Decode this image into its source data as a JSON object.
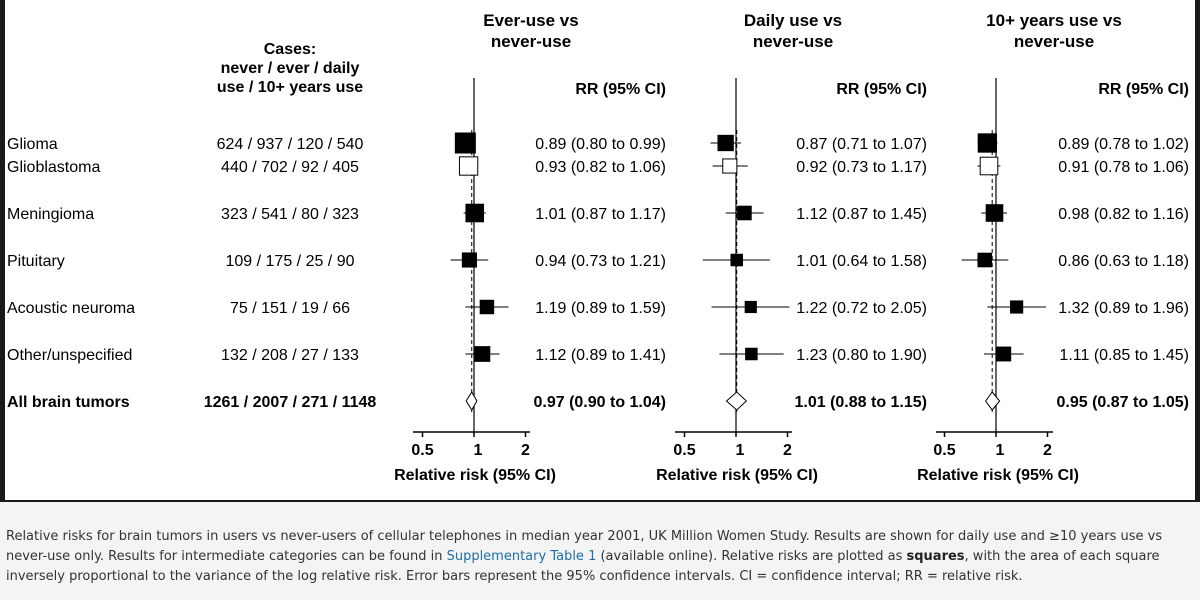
{
  "chart_data": {
    "type": "forest",
    "cases_header": [
      "Cases:",
      "never / ever / daily",
      "use / 10+ years use"
    ],
    "rr_header": "RR (95% CI)",
    "axis_title": "Relative risk (95% CI)",
    "axis_ticks": [
      0.5,
      1,
      2
    ],
    "axis_tick_labels": [
      "0.5",
      "1",
      "2"
    ],
    "rows": [
      {
        "label": "Glioma",
        "cases": "624 / 937 / 120 / 540",
        "filled": true
      },
      {
        "label": "Glioblastoma",
        "cases": "440 / 702 / 92 / 405",
        "filled": false
      },
      {
        "label": "Meningioma",
        "cases": "323 / 541 / 80 / 323",
        "filled": true
      },
      {
        "label": "Pituitary",
        "cases": "109 / 175 / 25 / 90",
        "filled": true
      },
      {
        "label": "Acoustic neuroma",
        "cases": "75 / 151 / 19 / 66",
        "filled": true
      },
      {
        "label": "Other/unspecified",
        "cases": "132 / 208 / 27 / 133",
        "filled": true
      },
      {
        "label": "All brain tumors",
        "cases": "1261 / 2007 / 271 / 1148",
        "summary": true
      }
    ],
    "panels": [
      {
        "title": [
          "Ever-use vs",
          "never-use"
        ],
        "estimates": [
          {
            "rr": 0.89,
            "lo": 0.8,
            "hi": 0.99,
            "weight": 1.0,
            "text": "0.89 (0.80 to 0.99)"
          },
          {
            "rr": 0.93,
            "lo": 0.82,
            "hi": 1.06,
            "weight": 0.8,
            "text": "0.93 (0.82 to 1.06)"
          },
          {
            "rr": 1.01,
            "lo": 0.87,
            "hi": 1.17,
            "weight": 0.72,
            "text": "1.01 (0.87 to 1.17)"
          },
          {
            "rr": 0.94,
            "lo": 0.73,
            "hi": 1.21,
            "weight": 0.4,
            "text": "0.94 (0.73 to 1.21)"
          },
          {
            "rr": 1.19,
            "lo": 0.89,
            "hi": 1.59,
            "weight": 0.35,
            "text": "1.19 (0.89 to 1.59)"
          },
          {
            "rr": 1.12,
            "lo": 0.89,
            "hi": 1.41,
            "weight": 0.45,
            "text": "1.12 (0.89 to 1.41)"
          },
          {
            "rr": 0.97,
            "lo": 0.9,
            "hi": 1.04,
            "weight": 1.0,
            "text": "0.97 (0.90 to 1.04)"
          }
        ]
      },
      {
        "title": [
          "Daily use vs",
          "never-use"
        ],
        "estimates": [
          {
            "rr": 0.87,
            "lo": 0.71,
            "hi": 1.07,
            "weight": 0.5,
            "text": "0.87 (0.71 to 1.07)"
          },
          {
            "rr": 0.92,
            "lo": 0.73,
            "hi": 1.17,
            "weight": 0.4,
            "text": "0.92 (0.73 to 1.17)"
          },
          {
            "rr": 1.12,
            "lo": 0.87,
            "hi": 1.45,
            "weight": 0.36,
            "text": "1.12 (0.87 to 1.45)"
          },
          {
            "rr": 1.01,
            "lo": 0.64,
            "hi": 1.58,
            "weight": 0.22,
            "text": "1.01 (0.64 to 1.58)"
          },
          {
            "rr": 1.22,
            "lo": 0.72,
            "hi": 2.05,
            "weight": 0.2,
            "text": "1.22 (0.72 to 2.05)"
          },
          {
            "rr": 1.23,
            "lo": 0.8,
            "hi": 1.9,
            "weight": 0.22,
            "text": "1.23 (0.80 to 1.90)"
          },
          {
            "rr": 1.01,
            "lo": 0.88,
            "hi": 1.15,
            "weight": 1.0,
            "text": "1.01 (0.88 to 1.15)"
          }
        ]
      },
      {
        "title": [
          "10+ years use vs",
          "never-use"
        ],
        "estimates": [
          {
            "rr": 0.89,
            "lo": 0.78,
            "hi": 1.02,
            "weight": 0.8,
            "text": "0.89 (0.78 to 1.02)"
          },
          {
            "rr": 0.91,
            "lo": 0.78,
            "hi": 1.06,
            "weight": 0.72,
            "text": "0.91 (0.78 to 1.06)"
          },
          {
            "rr": 0.98,
            "lo": 0.82,
            "hi": 1.16,
            "weight": 0.62,
            "text": "0.98 (0.82 to 1.16)"
          },
          {
            "rr": 0.86,
            "lo": 0.63,
            "hi": 1.18,
            "weight": 0.36,
            "text": "0.86 (0.63 to 1.18)"
          },
          {
            "rr": 1.32,
            "lo": 0.89,
            "hi": 1.96,
            "weight": 0.26,
            "text": "1.32 (0.89 to 1.96)"
          },
          {
            "rr": 1.11,
            "lo": 0.85,
            "hi": 1.45,
            "weight": 0.38,
            "text": "1.11 (0.85 to 1.45)"
          },
          {
            "rr": 0.95,
            "lo": 0.87,
            "hi": 1.05,
            "weight": 1.0,
            "text": "0.95 (0.87 to 1.05)"
          }
        ]
      }
    ]
  },
  "caption": {
    "part1": "Relative risks for brain tumors in users vs never-users of cellular telephones in median year 2001, UK Million Women Study. Results are shown for daily use and ≥10 years use vs never-use only. Results for intermediate categories can be found in ",
    "link": "Supplementary Table 1",
    "part2": " (available online). Relative risks are plotted as ",
    "bold": "squares",
    "part3": ", with the area of each square inversely proportional to the variance of the log relative risk. Error bars represent the 95% confidence intervals. CI = confidence interval; RR = relative risk."
  }
}
